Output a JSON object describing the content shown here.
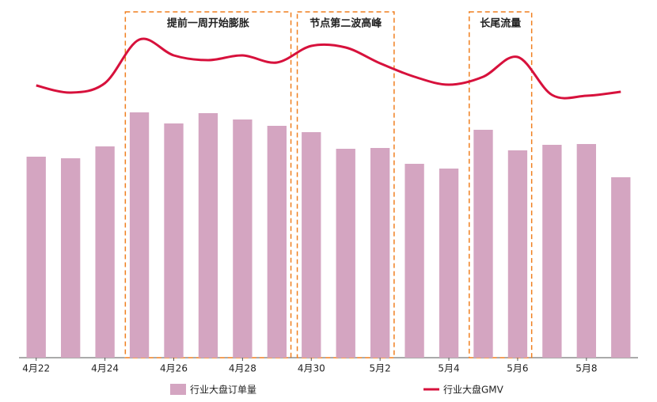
{
  "chart_data": {
    "type": "bar-line",
    "categories": [
      "4月22",
      null,
      "4月24",
      null,
      "4月26",
      null,
      "4月28",
      null,
      "4月30",
      null,
      "5月2",
      null,
      "5月4",
      null,
      "5月6",
      null,
      "5月8",
      null
    ],
    "series": [
      {
        "name": "行业大盘订单量",
        "type": "bar",
        "color": "#d4a5c1",
        "values": [
          254,
          252,
          267,
          310,
          296,
          309,
          301,
          293,
          285,
          264,
          265,
          245,
          239,
          288,
          262,
          269,
          270,
          228
        ]
      },
      {
        "name": "行业大盘GMV",
        "type": "line",
        "axis": "y2",
        "color": "#d7113c",
        "values": [
          344,
          335,
          347,
          402,
          382,
          376,
          382,
          373,
          394,
          392,
          372,
          355,
          345,
          355,
          380,
          332,
          331,
          336
        ]
      }
    ],
    "ylim": [
      0,
      420
    ],
    "y2lim": [
      0,
      420
    ],
    "annotations": [
      "提前一周开始膨胀",
      "节点第二波高峰",
      "长尾流量"
    ],
    "annotation_color": "#f07f1f"
  }
}
